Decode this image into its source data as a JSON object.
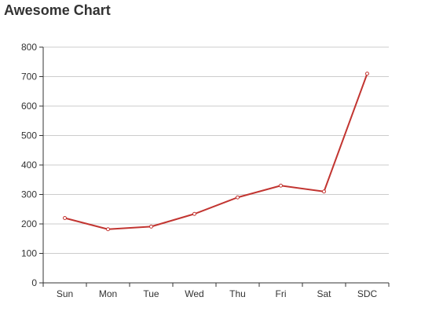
{
  "chart_data": {
    "type": "line",
    "title": "Awesome Chart",
    "xlabel": "",
    "ylabel": "",
    "categories": [
      "Sun",
      "Mon",
      "Tue",
      "Wed",
      "Thu",
      "Fri",
      "Sat",
      "SDC"
    ],
    "series": [
      {
        "values": [
          220,
          182,
          191,
          234,
          290,
          330,
          310,
          710
        ]
      }
    ],
    "ylim": [
      0,
      800
    ],
    "yticks": [
      0,
      100,
      200,
      300,
      400,
      500,
      600,
      700,
      800
    ],
    "grid": true,
    "legend": "none",
    "colors": {
      "line": "#c23531",
      "grid": "#cccccc",
      "axis": "#333333",
      "marker_fill": "#ffffff"
    }
  }
}
